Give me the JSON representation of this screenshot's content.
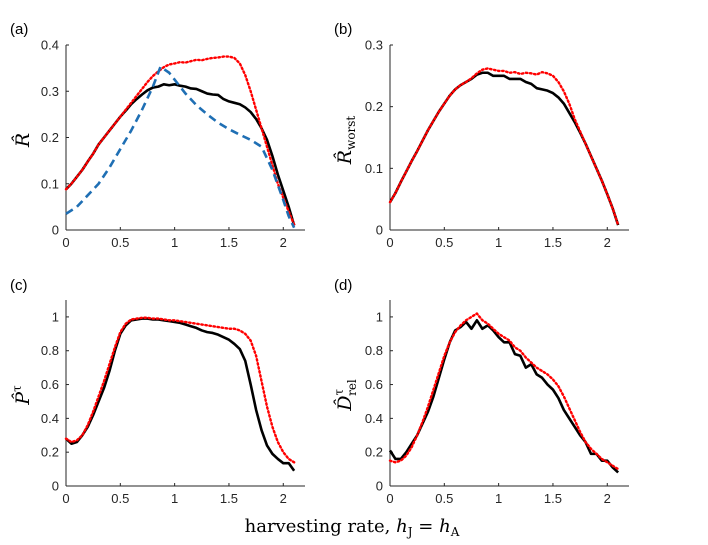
{
  "xlabel": {
    "text": "harvesting rate,",
    "var1": "h",
    "sub1": "J",
    "eq": "=",
    "var2": "h",
    "sub2": "A"
  },
  "chart_data": [
    {
      "type": "line",
      "panel": "(a)",
      "ylabel": "R̂",
      "ylabel_sub": "",
      "xlim": [
        0,
        2.2
      ],
      "ylim": [
        0,
        0.4
      ],
      "xticks": [
        0,
        0.5,
        1,
        1.5,
        2
      ],
      "yticks": [
        0,
        0.1,
        0.2,
        0.3,
        0.4
      ],
      "series": [
        {
          "name": "black solid",
          "color": "#000000",
          "style": "solid",
          "x": [
            0,
            0.05,
            0.1,
            0.15,
            0.2,
            0.25,
            0.3,
            0.35,
            0.4,
            0.45,
            0.5,
            0.55,
            0.6,
            0.65,
            0.7,
            0.75,
            0.8,
            0.85,
            0.9,
            0.95,
            1.0,
            1.05,
            1.1,
            1.15,
            1.2,
            1.25,
            1.3,
            1.35,
            1.4,
            1.45,
            1.5,
            1.55,
            1.6,
            1.65,
            1.7,
            1.75,
            1.8,
            1.85,
            1.9,
            1.95,
            2.0,
            2.05,
            2.1
          ],
          "y": [
            0.088,
            0.1,
            0.115,
            0.13,
            0.148,
            0.165,
            0.185,
            0.2,
            0.215,
            0.23,
            0.245,
            0.258,
            0.272,
            0.283,
            0.293,
            0.302,
            0.308,
            0.31,
            0.315,
            0.313,
            0.315,
            0.312,
            0.31,
            0.306,
            0.305,
            0.3,
            0.295,
            0.293,
            0.292,
            0.283,
            0.278,
            0.275,
            0.272,
            0.265,
            0.255,
            0.24,
            0.22,
            0.195,
            0.16,
            0.12,
            0.085,
            0.05,
            0.01
          ]
        },
        {
          "name": "red dotted",
          "color": "#ff0000",
          "style": "dotted",
          "x": [
            0,
            0.05,
            0.1,
            0.15,
            0.2,
            0.25,
            0.3,
            0.35,
            0.4,
            0.45,
            0.5,
            0.55,
            0.6,
            0.65,
            0.7,
            0.75,
            0.8,
            0.85,
            0.9,
            0.95,
            1.0,
            1.05,
            1.1,
            1.15,
            1.2,
            1.25,
            1.3,
            1.35,
            1.4,
            1.45,
            1.5,
            1.55,
            1.6,
            1.65,
            1.7,
            1.75,
            1.8,
            1.85,
            1.9,
            1.95,
            2.0,
            2.05,
            2.1
          ],
          "y": [
            0.088,
            0.1,
            0.115,
            0.13,
            0.148,
            0.165,
            0.185,
            0.2,
            0.215,
            0.23,
            0.245,
            0.26,
            0.275,
            0.29,
            0.305,
            0.32,
            0.333,
            0.343,
            0.352,
            0.358,
            0.36,
            0.363,
            0.362,
            0.365,
            0.368,
            0.367,
            0.37,
            0.372,
            0.373,
            0.375,
            0.375,
            0.372,
            0.36,
            0.335,
            0.3,
            0.26,
            0.22,
            0.18,
            0.14,
            0.1,
            0.07,
            0.04,
            0.012
          ]
        },
        {
          "name": "blue dashed",
          "color": "#1f6fb4",
          "style": "dashed",
          "x": [
            0,
            0.1,
            0.2,
            0.3,
            0.4,
            0.5,
            0.6,
            0.7,
            0.8,
            0.87,
            0.95,
            1.0,
            1.1,
            1.2,
            1.3,
            1.4,
            1.5,
            1.6,
            1.7,
            1.8,
            1.9,
            2.0,
            2.05,
            2.1
          ],
          "y": [
            0.035,
            0.05,
            0.075,
            0.1,
            0.135,
            0.175,
            0.215,
            0.26,
            0.31,
            0.353,
            0.34,
            0.325,
            0.295,
            0.27,
            0.25,
            0.232,
            0.218,
            0.206,
            0.195,
            0.18,
            0.13,
            0.065,
            0.03,
            0.005
          ]
        }
      ]
    },
    {
      "type": "line",
      "panel": "(b)",
      "ylabel": "R̂",
      "ylabel_sub": "worst",
      "xlim": [
        0,
        2.2
      ],
      "ylim": [
        0,
        0.3
      ],
      "xticks": [
        0,
        0.5,
        1,
        1.5,
        2
      ],
      "yticks": [
        0,
        0.1,
        0.2,
        0.3
      ],
      "series": [
        {
          "name": "black solid",
          "color": "#000000",
          "style": "solid",
          "x": [
            0,
            0.05,
            0.1,
            0.15,
            0.2,
            0.25,
            0.3,
            0.35,
            0.4,
            0.45,
            0.5,
            0.55,
            0.6,
            0.65,
            0.7,
            0.75,
            0.8,
            0.85,
            0.9,
            0.95,
            1.0,
            1.05,
            1.1,
            1.15,
            1.2,
            1.25,
            1.3,
            1.35,
            1.4,
            1.45,
            1.5,
            1.55,
            1.6,
            1.65,
            1.7,
            1.75,
            1.8,
            1.85,
            1.9,
            1.95,
            2.0,
            2.05,
            2.1
          ],
          "y": [
            0.045,
            0.06,
            0.078,
            0.095,
            0.112,
            0.128,
            0.145,
            0.162,
            0.177,
            0.192,
            0.205,
            0.218,
            0.228,
            0.235,
            0.24,
            0.245,
            0.252,
            0.255,
            0.255,
            0.25,
            0.25,
            0.25,
            0.245,
            0.245,
            0.245,
            0.24,
            0.237,
            0.23,
            0.228,
            0.226,
            0.222,
            0.215,
            0.205,
            0.19,
            0.175,
            0.158,
            0.14,
            0.12,
            0.1,
            0.08,
            0.058,
            0.035,
            0.008
          ]
        },
        {
          "name": "red dotted",
          "color": "#ff0000",
          "style": "dotted",
          "x": [
            0,
            0.05,
            0.1,
            0.15,
            0.2,
            0.25,
            0.3,
            0.35,
            0.4,
            0.45,
            0.5,
            0.55,
            0.6,
            0.65,
            0.7,
            0.75,
            0.8,
            0.85,
            0.9,
            0.95,
            1.0,
            1.05,
            1.1,
            1.15,
            1.2,
            1.25,
            1.3,
            1.35,
            1.4,
            1.45,
            1.5,
            1.55,
            1.6,
            1.65,
            1.7,
            1.75,
            1.8,
            1.85,
            1.9,
            1.95,
            2.0,
            2.05,
            2.1
          ],
          "y": [
            0.045,
            0.06,
            0.078,
            0.095,
            0.112,
            0.128,
            0.145,
            0.162,
            0.177,
            0.192,
            0.205,
            0.218,
            0.228,
            0.235,
            0.24,
            0.246,
            0.254,
            0.26,
            0.262,
            0.26,
            0.258,
            0.258,
            0.255,
            0.256,
            0.253,
            0.255,
            0.254,
            0.252,
            0.256,
            0.254,
            0.25,
            0.24,
            0.225,
            0.205,
            0.18,
            0.16,
            0.14,
            0.12,
            0.1,
            0.08,
            0.058,
            0.035,
            0.008
          ]
        }
      ]
    },
    {
      "type": "line",
      "panel": "(c)",
      "ylabel": "P̂",
      "ylabel_sup": "τ",
      "xlim": [
        0,
        2.2
      ],
      "ylim": [
        0,
        1.1
      ],
      "xticks": [
        0,
        0.5,
        1,
        1.5,
        2
      ],
      "yticks": [
        0,
        0.2,
        0.4,
        0.6,
        0.8,
        1
      ],
      "series": [
        {
          "name": "black solid",
          "color": "#000000",
          "style": "solid",
          "x": [
            0,
            0.05,
            0.1,
            0.15,
            0.2,
            0.25,
            0.3,
            0.35,
            0.4,
            0.45,
            0.5,
            0.55,
            0.6,
            0.65,
            0.7,
            0.75,
            0.8,
            0.85,
            0.9,
            0.95,
            1.0,
            1.05,
            1.1,
            1.15,
            1.2,
            1.25,
            1.3,
            1.35,
            1.4,
            1.45,
            1.5,
            1.55,
            1.6,
            1.65,
            1.7,
            1.75,
            1.8,
            1.85,
            1.9,
            1.95,
            2.0,
            2.05,
            2.1
          ],
          "y": [
            0.28,
            0.25,
            0.26,
            0.3,
            0.35,
            0.42,
            0.5,
            0.58,
            0.68,
            0.8,
            0.9,
            0.95,
            0.98,
            0.985,
            0.99,
            0.99,
            0.985,
            0.985,
            0.98,
            0.975,
            0.97,
            0.965,
            0.955,
            0.945,
            0.935,
            0.92,
            0.91,
            0.905,
            0.895,
            0.88,
            0.865,
            0.84,
            0.81,
            0.74,
            0.6,
            0.45,
            0.33,
            0.24,
            0.19,
            0.16,
            0.135,
            0.135,
            0.09
          ]
        },
        {
          "name": "red dotted",
          "color": "#ff0000",
          "style": "dotted",
          "x": [
            0,
            0.05,
            0.1,
            0.15,
            0.2,
            0.25,
            0.3,
            0.35,
            0.4,
            0.45,
            0.5,
            0.55,
            0.6,
            0.65,
            0.7,
            0.75,
            0.8,
            0.85,
            0.9,
            0.95,
            1.0,
            1.05,
            1.1,
            1.15,
            1.2,
            1.25,
            1.3,
            1.35,
            1.4,
            1.45,
            1.5,
            1.55,
            1.6,
            1.65,
            1.7,
            1.75,
            1.8,
            1.85,
            1.9,
            1.95,
            2.0,
            2.05,
            2.1
          ],
          "y": [
            0.28,
            0.26,
            0.27,
            0.3,
            0.36,
            0.44,
            0.53,
            0.62,
            0.72,
            0.82,
            0.91,
            0.96,
            0.985,
            0.99,
            0.995,
            0.995,
            0.99,
            0.99,
            0.985,
            0.98,
            0.98,
            0.975,
            0.97,
            0.965,
            0.96,
            0.955,
            0.95,
            0.945,
            0.94,
            0.935,
            0.93,
            0.93,
            0.92,
            0.9,
            0.86,
            0.77,
            0.62,
            0.47,
            0.35,
            0.26,
            0.2,
            0.16,
            0.14
          ]
        }
      ]
    },
    {
      "type": "line",
      "panel": "(d)",
      "ylabel": "D̂",
      "ylabel_sub": "rel",
      "ylabel_sup": "τ",
      "xlim": [
        0,
        2.2
      ],
      "ylim": [
        0,
        1.1
      ],
      "xticks": [
        0,
        0.5,
        1,
        1.5,
        2
      ],
      "yticks": [
        0,
        0.2,
        0.4,
        0.6,
        0.8,
        1
      ],
      "series": [
        {
          "name": "black solid",
          "color": "#000000",
          "style": "solid",
          "x": [
            0,
            0.05,
            0.1,
            0.15,
            0.2,
            0.25,
            0.3,
            0.35,
            0.4,
            0.45,
            0.5,
            0.55,
            0.6,
            0.65,
            0.7,
            0.75,
            0.8,
            0.85,
            0.9,
            0.95,
            1.0,
            1.05,
            1.1,
            1.15,
            1.2,
            1.25,
            1.3,
            1.35,
            1.4,
            1.45,
            1.5,
            1.55,
            1.6,
            1.65,
            1.7,
            1.75,
            1.8,
            1.85,
            1.9,
            1.95,
            2.0,
            2.05,
            2.1
          ],
          "y": [
            0.21,
            0.16,
            0.16,
            0.2,
            0.25,
            0.3,
            0.37,
            0.44,
            0.53,
            0.64,
            0.75,
            0.85,
            0.92,
            0.94,
            0.97,
            0.93,
            0.98,
            0.93,
            0.95,
            0.92,
            0.88,
            0.85,
            0.85,
            0.78,
            0.77,
            0.7,
            0.72,
            0.66,
            0.64,
            0.6,
            0.57,
            0.52,
            0.45,
            0.4,
            0.35,
            0.3,
            0.26,
            0.19,
            0.19,
            0.15,
            0.15,
            0.11,
            0.08
          ]
        },
        {
          "name": "red dotted",
          "color": "#ff0000",
          "style": "dotted",
          "x": [
            0,
            0.05,
            0.1,
            0.15,
            0.2,
            0.25,
            0.3,
            0.35,
            0.4,
            0.45,
            0.5,
            0.55,
            0.6,
            0.65,
            0.7,
            0.75,
            0.8,
            0.85,
            0.9,
            0.95,
            1.0,
            1.05,
            1.1,
            1.15,
            1.2,
            1.25,
            1.3,
            1.35,
            1.4,
            1.45,
            1.5,
            1.55,
            1.6,
            1.65,
            1.7,
            1.75,
            1.8,
            1.85,
            1.9,
            1.95,
            2.0,
            2.05,
            2.1
          ],
          "y": [
            0.15,
            0.14,
            0.15,
            0.18,
            0.23,
            0.3,
            0.38,
            0.47,
            0.57,
            0.67,
            0.77,
            0.85,
            0.91,
            0.95,
            0.98,
            1.0,
            1.02,
            0.98,
            0.96,
            0.93,
            0.9,
            0.88,
            0.86,
            0.82,
            0.8,
            0.76,
            0.73,
            0.7,
            0.68,
            0.66,
            0.63,
            0.59,
            0.53,
            0.46,
            0.39,
            0.32,
            0.26,
            0.22,
            0.19,
            0.16,
            0.14,
            0.12,
            0.1
          ]
        }
      ]
    }
  ]
}
